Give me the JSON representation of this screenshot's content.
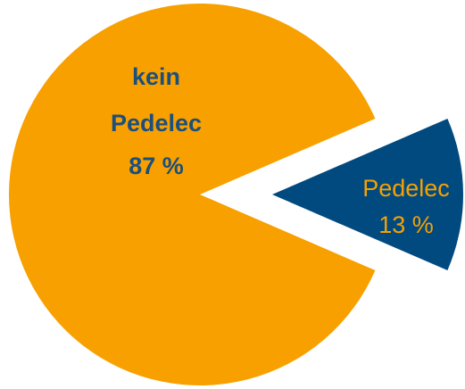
{
  "chart_data": {
    "type": "pie",
    "categories": [
      "kein Pedelec",
      "Pedelec"
    ],
    "values": [
      87,
      13
    ],
    "value_labels": [
      "87 %",
      "13 %"
    ],
    "colors": [
      "#f7a000",
      "#014a80"
    ],
    "label_colors": [
      "#1c4f7c",
      "#f7a000"
    ]
  }
}
